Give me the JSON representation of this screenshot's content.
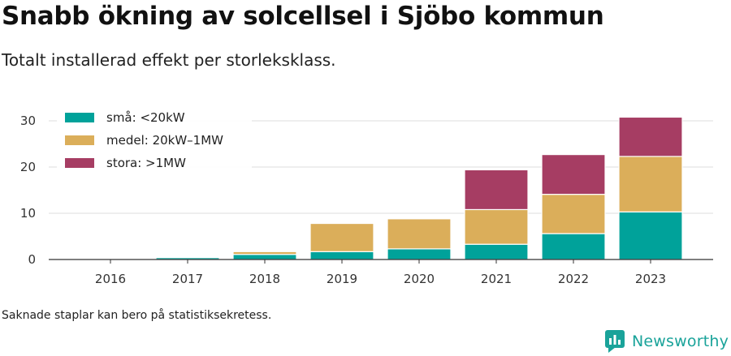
{
  "title": "Snabb ökning av solcellsel i Sjöbo kommun",
  "subtitle": "Totalt installerad effekt per storleksklass.",
  "footnote": "Saknade staplar kan bero på statistiksekretess.",
  "brand": {
    "name": "Newsworthy",
    "icon": "newsworthy-logo-icon",
    "color": "#1aa39a"
  },
  "chart_data": {
    "type": "bar",
    "stacked": true,
    "categories": [
      "2016",
      "2017",
      "2018",
      "2019",
      "2020",
      "2021",
      "2022",
      "2023"
    ],
    "series": [
      {
        "name": "små: <20kW",
        "color": "#00a29a",
        "values": [
          0.05,
          0.4,
          1.1,
          1.7,
          2.3,
          3.3,
          5.6,
          10.3
        ]
      },
      {
        "name": "medel: 20kW–1MW",
        "color": "#dbae5a",
        "values": [
          0,
          0,
          0.6,
          6.1,
          6.5,
          7.5,
          8.5,
          12.0
        ]
      },
      {
        "name": "stora: >1MW",
        "color": "#a63d63",
        "values": [
          0,
          0,
          0,
          0,
          0,
          8.6,
          8.6,
          8.5
        ]
      }
    ],
    "ylim": [
      0,
      33
    ],
    "yticks": [
      0,
      10,
      20,
      30
    ],
    "grid": true,
    "legend": "top-left",
    "xlabel": "",
    "ylabel": ""
  }
}
